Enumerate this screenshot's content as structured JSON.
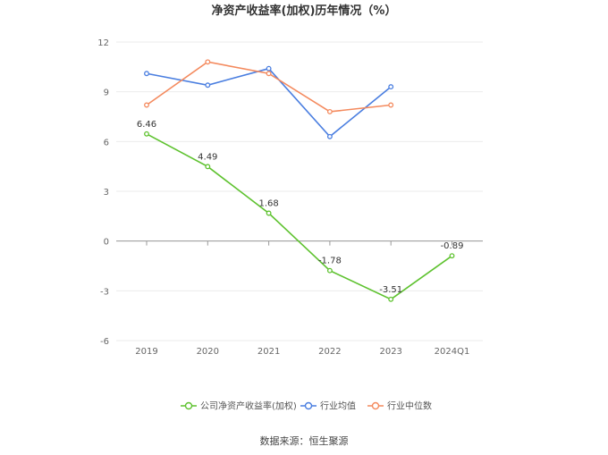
{
  "chart_data": {
    "type": "line",
    "title": "净资产收益率(加权)历年情况（%）",
    "categories": [
      "2019",
      "2020",
      "2021",
      "2022",
      "2023",
      "2024Q1"
    ],
    "ylim": [
      -6,
      12
    ],
    "yticks": [
      "12",
      "9",
      "6",
      "3",
      "0",
      "-3",
      "-6"
    ],
    "grid": true,
    "legend_position": "bottom",
    "series": [
      {
        "name": "公司净资产收益率(加权)",
        "color": "#5ec22f",
        "values": [
          6.46,
          4.49,
          1.68,
          -1.78,
          -3.51,
          -0.89
        ],
        "labels": [
          "6.46",
          "4.49",
          "1.68",
          "-1.78",
          "-3.51",
          "-0.89"
        ]
      },
      {
        "name": "行业均值",
        "color": "#4a7ee0",
        "values": [
          10.1,
          9.4,
          10.4,
          6.3,
          9.3,
          null
        ]
      },
      {
        "name": "行业中位数",
        "color": "#f48a5e",
        "values": [
          8.2,
          10.8,
          10.1,
          7.8,
          8.2,
          null
        ]
      }
    ]
  },
  "footer": {
    "source": "数据来源：恒生聚源"
  }
}
